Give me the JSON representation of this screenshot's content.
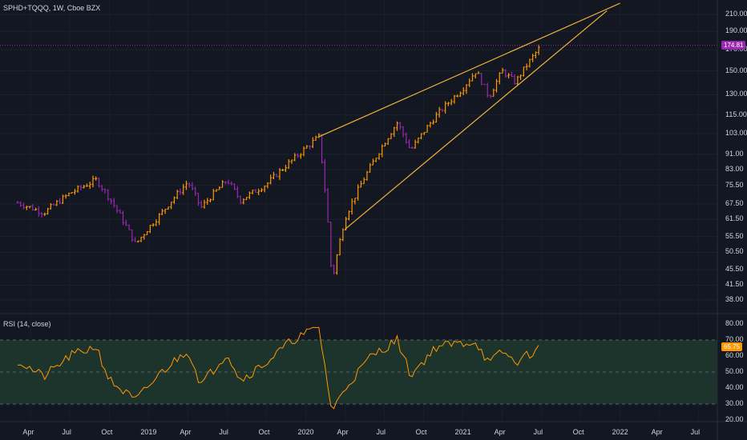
{
  "header": {
    "symbol_title": "SPHD+TQQQ, 1W, Cboe BZX"
  },
  "rsi_panel": {
    "title": "RSI (14, close)"
  },
  "price_axis": {
    "ticks": [
      "210.00",
      "190.00",
      "170.00",
      "150.00",
      "130.00",
      "115.00",
      "103.00",
      "91.00",
      "83.00",
      "75.50",
      "67.50",
      "61.50",
      "55.50",
      "50.50",
      "45.50",
      "41.50",
      "38.00"
    ],
    "last_price": "174.81",
    "last_price_color": "#9c27b0",
    "scale": "log"
  },
  "rsi_axis": {
    "ticks": [
      "80.00",
      "70.00",
      "60.00",
      "50.00",
      "40.00",
      "30.00",
      "20.00"
    ],
    "last_value": "65.75",
    "last_value_color": "#ff9800",
    "band_upper": 70,
    "band_lower": 30,
    "mid": 50
  },
  "time_axis": {
    "ticks": [
      "Apr",
      "Jul",
      "Oct",
      "2019",
      "Apr",
      "Jul",
      "Oct",
      "2020",
      "Apr",
      "Jul",
      "Oct",
      "2021",
      "Apr",
      "Jul",
      "Oct",
      "2022",
      "Apr",
      "Jul"
    ]
  },
  "colors": {
    "up": "#ff9800",
    "down": "#9c27b0",
    "trendline": "#f0b13c",
    "rsi_line": "#ff9800",
    "rsi_band_fill": "#1f3a2e",
    "background": "#131722"
  },
  "chart_data": {
    "type": "ohlc",
    "title": "SPHD+TQQQ, 1W, Cboe BZX",
    "y_scale": "log",
    "ylim": [
      36,
      225
    ],
    "approx_close_path": [
      {
        "t": "2018-03",
        "v": 68
      },
      {
        "t": "2018-05",
        "v": 64
      },
      {
        "t": "2018-07",
        "v": 72
      },
      {
        "t": "2018-09",
        "v": 78
      },
      {
        "t": "2018-10",
        "v": 70
      },
      {
        "t": "2018-12",
        "v": 53
      },
      {
        "t": "2019-02",
        "v": 64
      },
      {
        "t": "2019-04",
        "v": 77
      },
      {
        "t": "2019-05",
        "v": 66
      },
      {
        "t": "2019-07",
        "v": 78
      },
      {
        "t": "2019-08",
        "v": 69
      },
      {
        "t": "2019-10",
        "v": 76
      },
      {
        "t": "2019-12",
        "v": 88
      },
      {
        "t": "2020-02",
        "v": 101
      },
      {
        "t": "2020-03",
        "v": 42
      },
      {
        "t": "2020-04",
        "v": 62
      },
      {
        "t": "2020-06",
        "v": 85
      },
      {
        "t": "2020-08",
        "v": 110
      },
      {
        "t": "2020-09",
        "v": 93
      },
      {
        "t": "2020-11",
        "v": 115
      },
      {
        "t": "2021-01",
        "v": 135
      },
      {
        "t": "2021-02",
        "v": 150
      },
      {
        "t": "2021-03",
        "v": 128
      },
      {
        "t": "2021-04",
        "v": 150
      },
      {
        "t": "2021-05",
        "v": 140
      },
      {
        "t": "2021-07",
        "v": 174.81
      }
    ],
    "trendlines": [
      {
        "from": {
          "t": "2020-02",
          "v": 101
        },
        "to": {
          "t": "2022-01",
          "v": 225
        }
      },
      {
        "from": {
          "t": "2020-04",
          "v": 58
        },
        "to": {
          "t": "2021-12",
          "v": 215
        }
      }
    ],
    "rsi": {
      "name": "RSI (14, close)",
      "ylim": [
        20,
        85
      ],
      "approx_path": [
        {
          "t": "2018-03",
          "v": 57
        },
        {
          "t": "2018-05",
          "v": 47
        },
        {
          "t": "2018-07",
          "v": 60
        },
        {
          "t": "2018-09",
          "v": 66
        },
        {
          "t": "2018-10",
          "v": 45
        },
        {
          "t": "2018-12",
          "v": 32
        },
        {
          "t": "2019-02",
          "v": 50
        },
        {
          "t": "2019-04",
          "v": 64
        },
        {
          "t": "2019-05",
          "v": 42
        },
        {
          "t": "2019-07",
          "v": 62
        },
        {
          "t": "2019-08",
          "v": 45
        },
        {
          "t": "2019-10",
          "v": 56
        },
        {
          "t": "2019-12",
          "v": 70
        },
        {
          "t": "2020-02",
          "v": 78
        },
        {
          "t": "2020-03",
          "v": 25
        },
        {
          "t": "2020-04",
          "v": 40
        },
        {
          "t": "2020-06",
          "v": 60
        },
        {
          "t": "2020-08",
          "v": 70
        },
        {
          "t": "2020-09",
          "v": 48
        },
        {
          "t": "2020-11",
          "v": 66
        },
        {
          "t": "2021-01",
          "v": 68
        },
        {
          "t": "2021-02",
          "v": 69
        },
        {
          "t": "2021-03",
          "v": 55
        },
        {
          "t": "2021-04",
          "v": 63
        },
        {
          "t": "2021-05",
          "v": 56
        },
        {
          "t": "2021-07",
          "v": 65.75
        }
      ]
    }
  }
}
